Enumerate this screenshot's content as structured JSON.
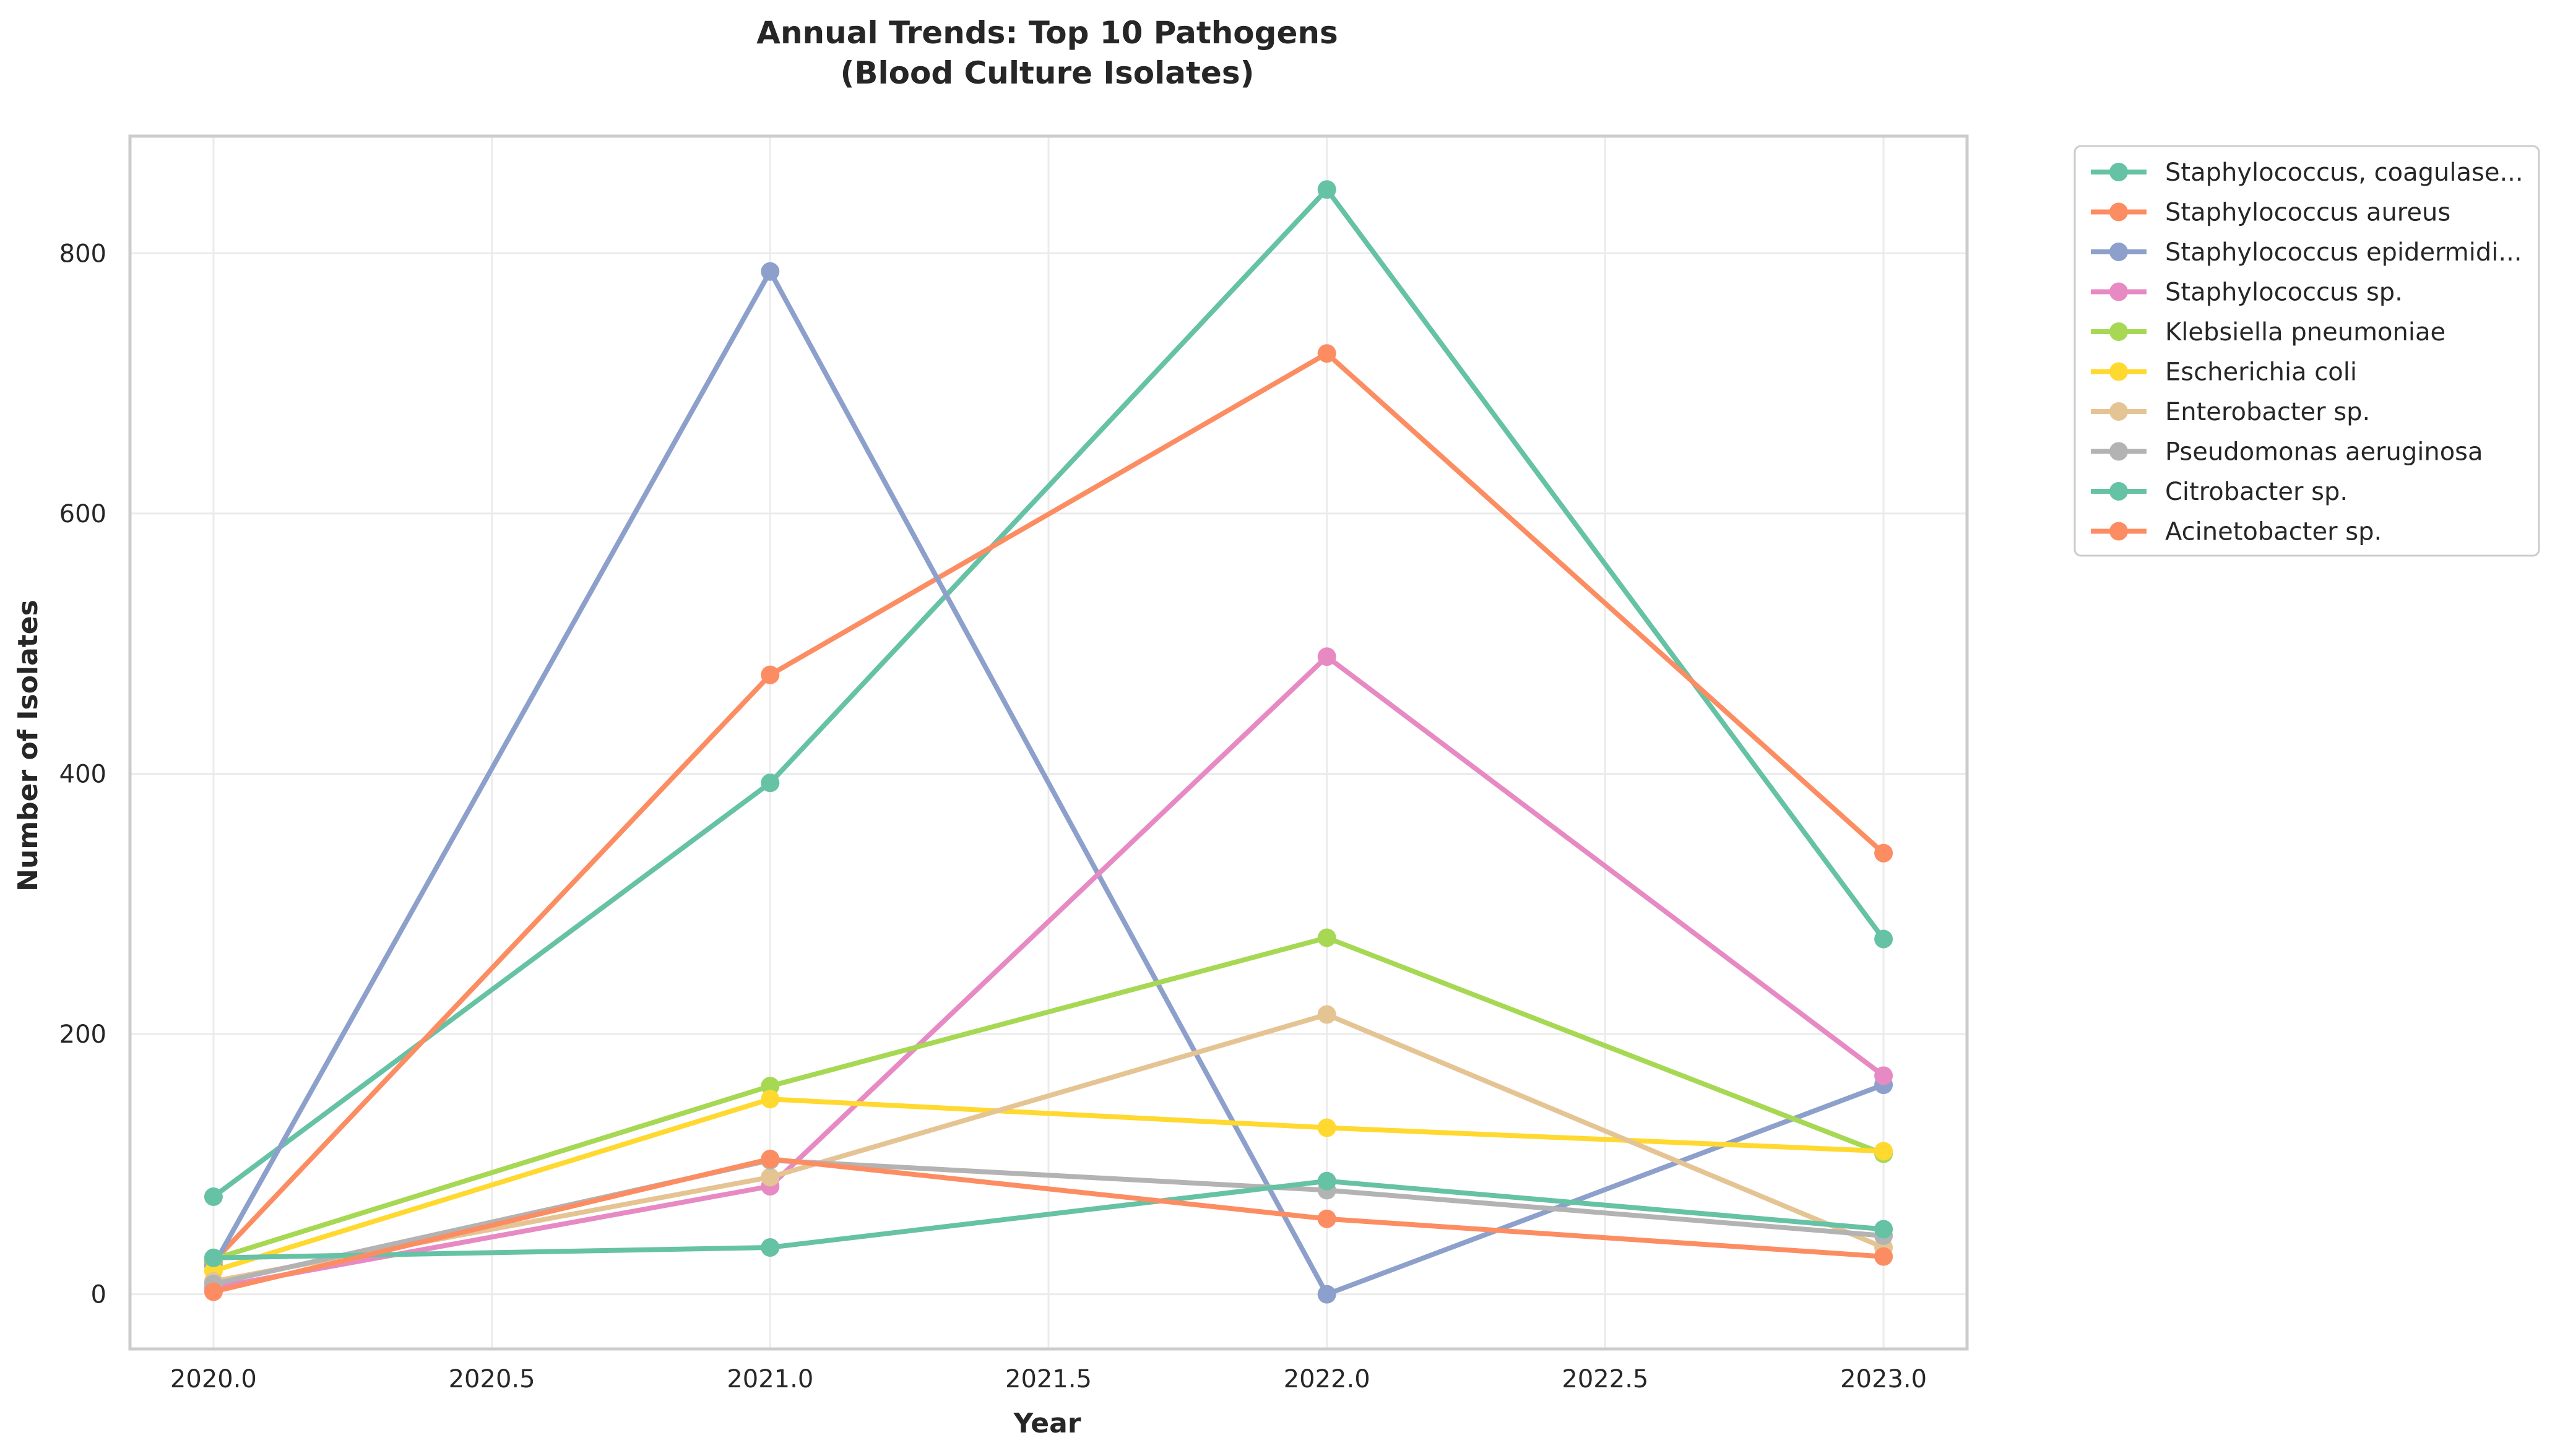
{
  "chart_data": {
    "type": "line",
    "title_line1": "Annual Trends: Top 10 Pathogens",
    "title_line2": "(Blood Culture Isolates)",
    "xlabel": "Year",
    "ylabel": "Number of Isolates",
    "xlim": [
      2019.85,
      2023.15
    ],
    "ylim": [
      -42,
      890
    ],
    "x_ticks": [
      2020.0,
      2020.5,
      2021.0,
      2021.5,
      2022.0,
      2022.5,
      2023.0
    ],
    "x_tick_labels": [
      "2020.0",
      "2020.5",
      "2021.0",
      "2021.5",
      "2022.0",
      "2022.5",
      "2023.0"
    ],
    "y_ticks": [
      0,
      200,
      400,
      600,
      800
    ],
    "y_tick_labels": [
      "0",
      "200",
      "400",
      "600",
      "800"
    ],
    "grid": true,
    "legend_position": "outside-right-top",
    "x": [
      2020,
      2021,
      2022,
      2023
    ],
    "series": [
      {
        "name": "Staphylococcus, coagulase...",
        "color": "#66c2a5",
        "values": [
          75,
          393,
          849,
          273
        ]
      },
      {
        "name": "Staphylococcus aureus",
        "color": "#fc8d62",
        "values": [
          25,
          476,
          723,
          339
        ]
      },
      {
        "name": "Staphylococcus epidermidi...",
        "color": "#8da0cb",
        "values": [
          22,
          786,
          0,
          161
        ]
      },
      {
        "name": "Staphylococcus sp.",
        "color": "#e78ac3",
        "values": [
          5,
          83,
          490,
          168
        ]
      },
      {
        "name": "Klebsiella pneumoniae",
        "color": "#a6d854",
        "values": [
          27,
          160,
          274,
          108
        ]
      },
      {
        "name": "Escherichia coli",
        "color": "#ffd92f",
        "values": [
          18,
          150,
          128,
          110
        ]
      },
      {
        "name": "Enterobacter sp.",
        "color": "#e5c494",
        "values": [
          10,
          90,
          215,
          36
        ]
      },
      {
        "name": "Pseudomonas aeruginosa",
        "color": "#b3b3b3",
        "values": [
          8,
          103,
          80,
          45
        ]
      },
      {
        "name": "Citrobacter sp.",
        "color": "#66c2a5",
        "values": [
          28,
          36,
          87,
          50
        ]
      },
      {
        "name": "Acinetobacter sp.",
        "color": "#fc8d62",
        "values": [
          2,
          104,
          58,
          29
        ]
      }
    ]
  }
}
